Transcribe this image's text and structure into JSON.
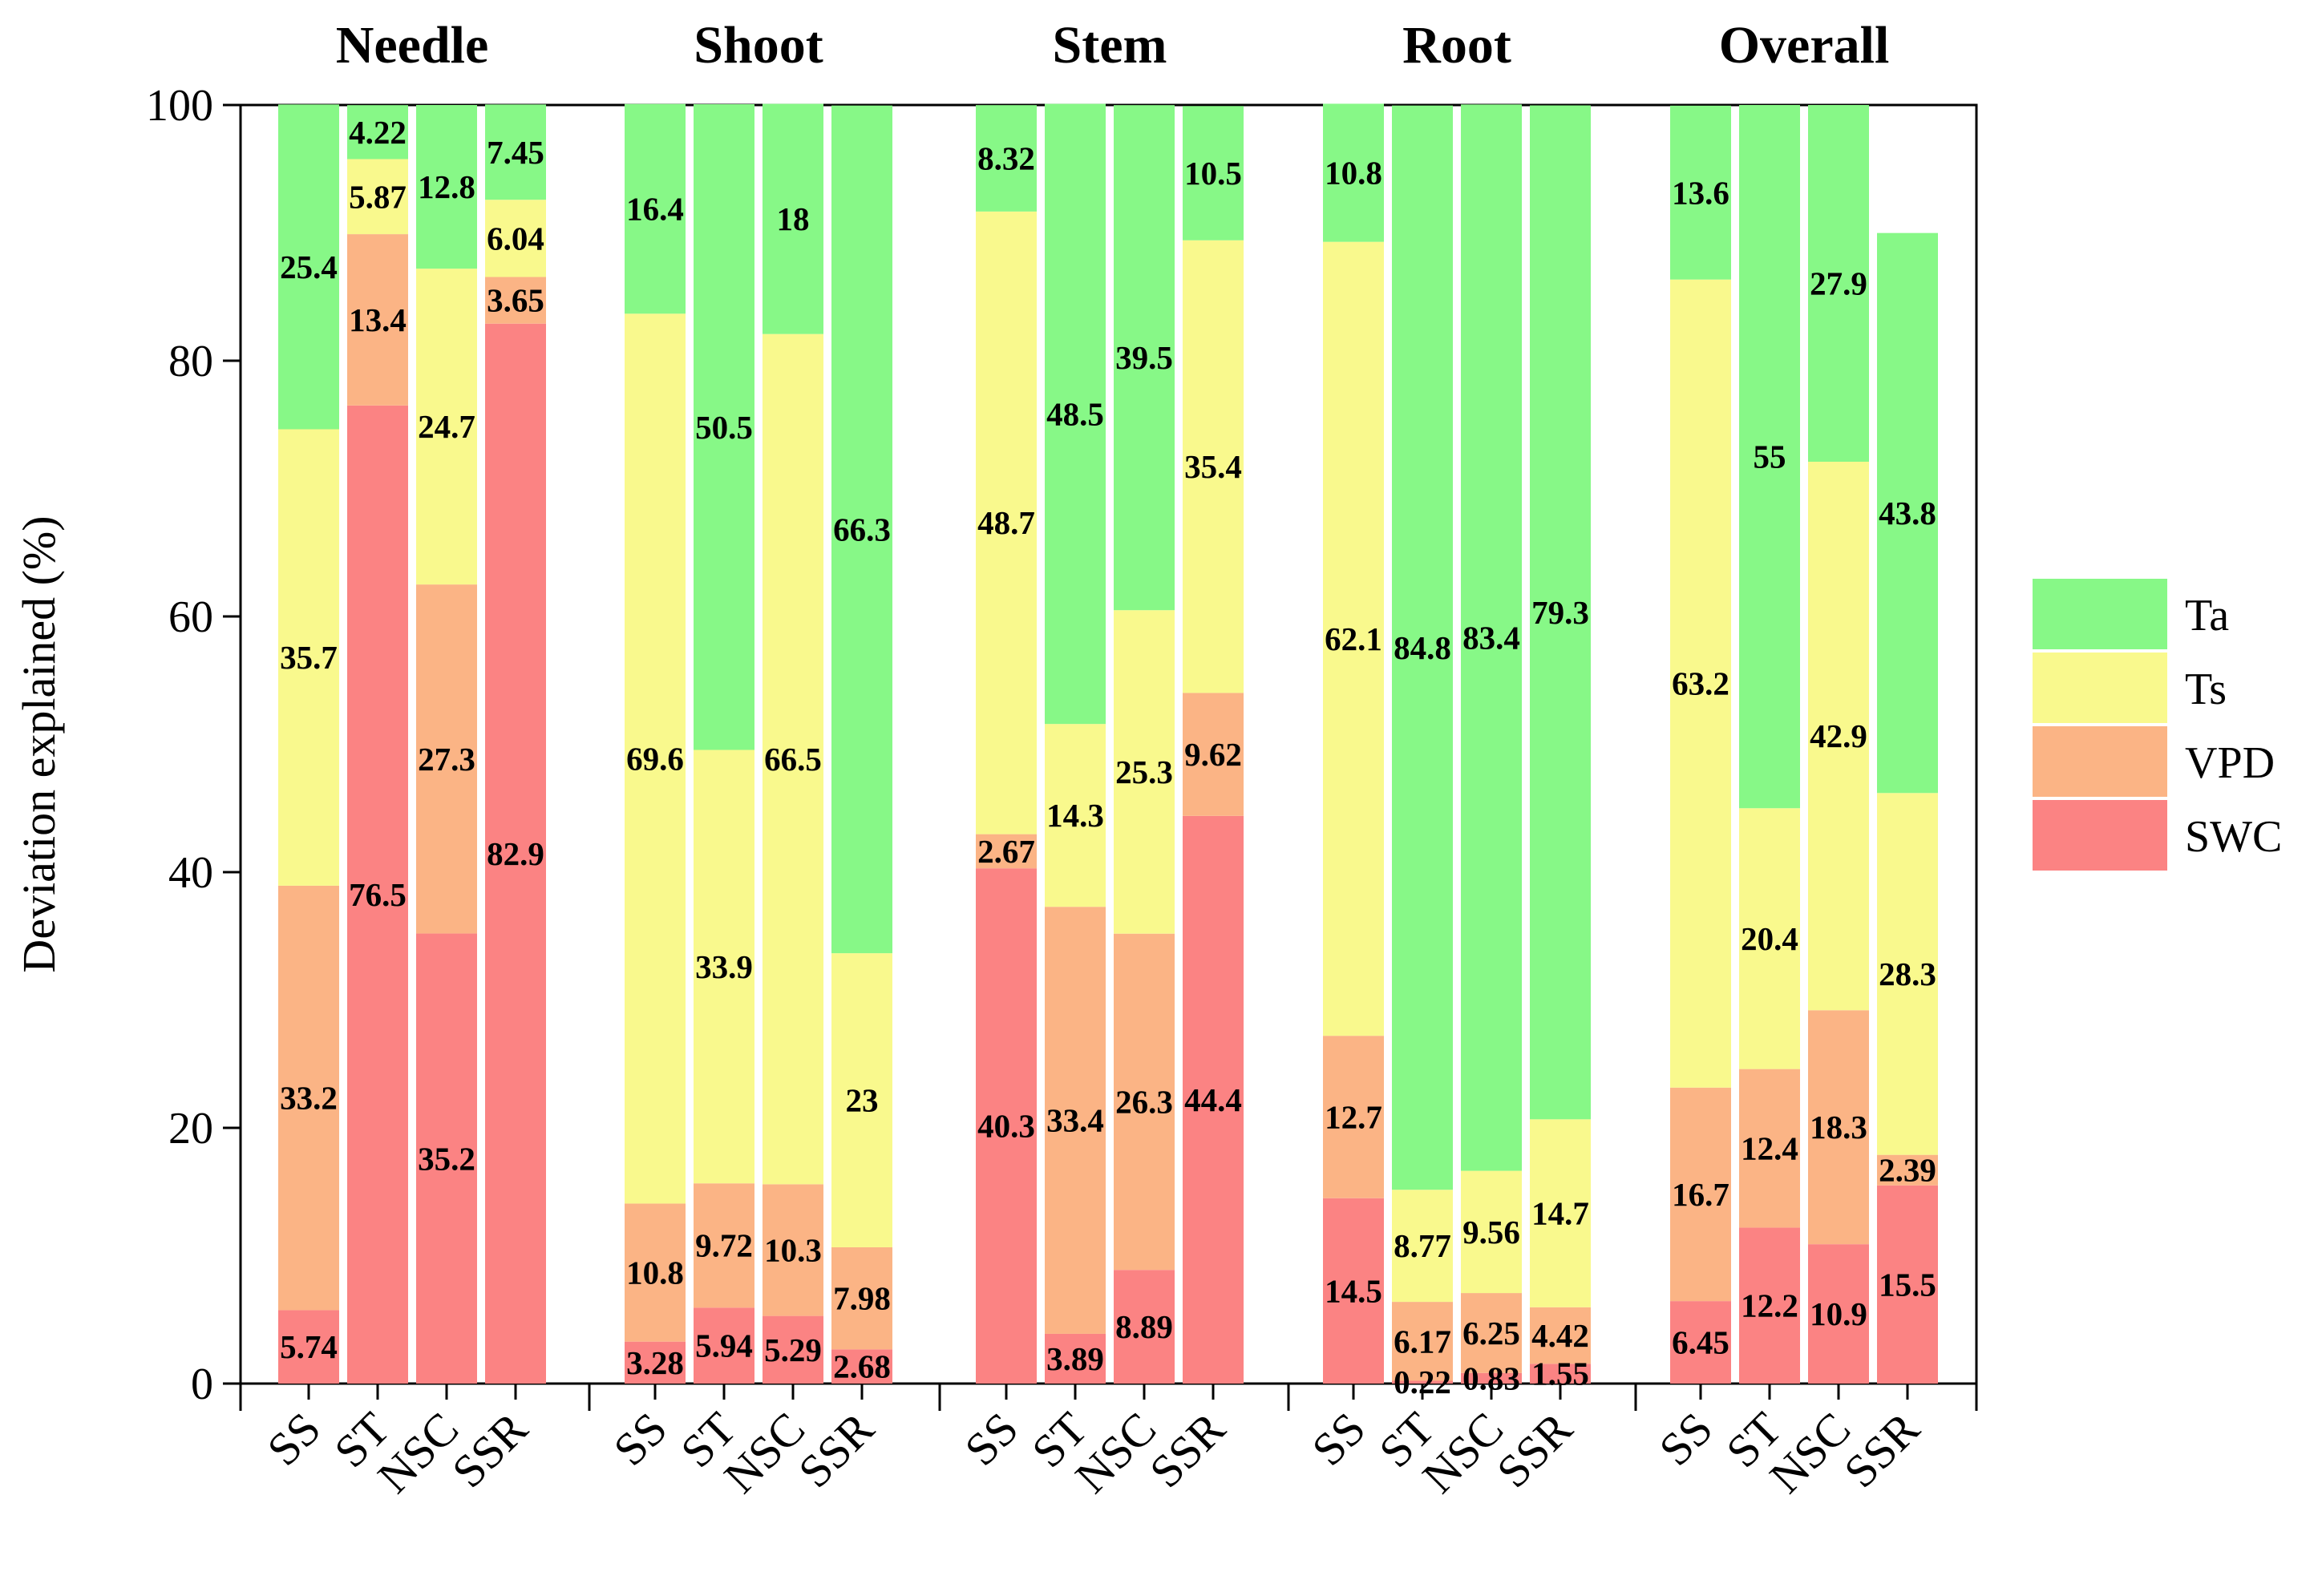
{
  "chart_data": {
    "type": "bar",
    "stacked": true,
    "ylabel": "Deviation explained (%)",
    "ylim": [
      0,
      100
    ],
    "yticks": [
      0,
      20,
      40,
      60,
      80,
      100
    ],
    "legend_position": "right",
    "legend": [
      {
        "name": "Ta",
        "color": "#87f887"
      },
      {
        "name": "Ts",
        "color": "#f9f98d"
      },
      {
        "name": "VPD",
        "color": "#fbb485"
      },
      {
        "name": "SWC",
        "color": "#fb8383"
      }
    ],
    "stack_order": [
      "SWC",
      "VPD",
      "Ts",
      "Ta"
    ],
    "colors": {
      "Ta": "#87f887",
      "Ts": "#f9f98d",
      "VPD": "#fbb485",
      "SWC": "#fb8383"
    },
    "groups": [
      {
        "title": "Needle",
        "bars": [
          {
            "category": "SS",
            "SWC": {
              "value": 5.74,
              "label": "5.74"
            },
            "VPD": {
              "value": 33.2,
              "label": "33.2"
            },
            "Ts": {
              "value": 35.7,
              "label": "35.7"
            },
            "Ta": {
              "value": 25.4,
              "label": "25.4"
            }
          },
          {
            "category": "ST",
            "SWC": {
              "value": 76.5,
              "label": "76.5"
            },
            "VPD": {
              "value": 13.4,
              "label": "13.4"
            },
            "Ts": {
              "value": 5.87,
              "label": "5.87"
            },
            "Ta": {
              "value": 4.22,
              "label": "4.22"
            }
          },
          {
            "category": "NSC",
            "SWC": {
              "value": 35.2,
              "label": "35.2"
            },
            "VPD": {
              "value": 27.3,
              "label": "27.3"
            },
            "Ts": {
              "value": 24.7,
              "label": "24.7"
            },
            "Ta": {
              "value": 12.8,
              "label": "12.8"
            }
          },
          {
            "category": "SSR",
            "SWC": {
              "value": 82.9,
              "label": "82.9"
            },
            "VPD": {
              "value": 3.65,
              "label": "3.65"
            },
            "Ts": {
              "value": 6.04,
              "label": "6.04"
            },
            "Ta": {
              "value": 7.45,
              "label": "7.45"
            }
          }
        ]
      },
      {
        "title": "Shoot",
        "bars": [
          {
            "category": "SS",
            "SWC": {
              "value": 3.28,
              "label": "3.28"
            },
            "VPD": {
              "value": 10.8,
              "label": "10.8"
            },
            "Ts": {
              "value": 69.6,
              "label": "69.6"
            },
            "Ta": {
              "value": 16.4,
              "label": "16.4"
            }
          },
          {
            "category": "ST",
            "SWC": {
              "value": 5.94,
              "label": "5.94"
            },
            "VPD": {
              "value": 9.72,
              "label": "9.72"
            },
            "Ts": {
              "value": 33.9,
              "label": "33.9"
            },
            "Ta": {
              "value": 50.5,
              "label": "50.5"
            }
          },
          {
            "category": "NSC",
            "SWC": {
              "value": 5.29,
              "label": "5.29"
            },
            "VPD": {
              "value": 10.3,
              "label": "10.3"
            },
            "Ts": {
              "value": 66.5,
              "label": "66.5"
            },
            "Ta": {
              "value": 18,
              "label": "18"
            }
          },
          {
            "category": "SSR",
            "SWC": {
              "value": 2.68,
              "label": "2.68"
            },
            "VPD": {
              "value": 7.98,
              "label": "7.98"
            },
            "Ts": {
              "value": 23,
              "label": "23"
            },
            "Ta": {
              "value": 66.3,
              "label": "66.3"
            }
          }
        ]
      },
      {
        "title": "Stem",
        "bars": [
          {
            "category": "SS",
            "SWC": {
              "value": 40.3,
              "label": "40.3"
            },
            "VPD": {
              "value": 2.67,
              "label": "2.67"
            },
            "Ts": {
              "value": 48.7,
              "label": "48.7"
            },
            "Ta": {
              "value": 8.32,
              "label": "8.32"
            }
          },
          {
            "category": "ST",
            "SWC": {
              "value": 3.89,
              "label": "3.89"
            },
            "VPD": {
              "value": 33.4,
              "label": "33.4"
            },
            "Ts": {
              "value": 14.3,
              "label": "14.3"
            },
            "Ta": {
              "value": 48.5,
              "label": "48.5"
            }
          },
          {
            "category": "NSC",
            "SWC": {
              "value": 8.89,
              "label": "8.89"
            },
            "VPD": {
              "value": 26.3,
              "label": "26.3"
            },
            "Ts": {
              "value": 25.3,
              "label": "25.3"
            },
            "Ta": {
              "value": 39.5,
              "label": "39.5"
            }
          },
          {
            "category": "SSR",
            "SWC": {
              "value": 44.4,
              "label": "44.4"
            },
            "VPD": {
              "value": 9.62,
              "label": "9.62"
            },
            "Ts": {
              "value": 35.4,
              "label": "35.4"
            },
            "Ta": {
              "value": 10.5,
              "label": "10.5"
            }
          }
        ]
      },
      {
        "title": "Root",
        "bars": [
          {
            "category": "SS",
            "SWC": {
              "value": 14.5,
              "label": "14.5"
            },
            "VPD": {
              "value": 12.7,
              "label": "12.7"
            },
            "Ts": {
              "value": 62.1,
              "label": "62.1"
            },
            "Ta": {
              "value": 10.8,
              "label": "10.8"
            }
          },
          {
            "category": "ST",
            "SWC": {
              "value": 0.22,
              "label": "0.22"
            },
            "VPD": {
              "value": 6.17,
              "label": "6.17"
            },
            "Ts": {
              "value": 8.77,
              "label": "8.77"
            },
            "Ta": {
              "value": 84.8,
              "label": "84.8"
            }
          },
          {
            "category": "NSC",
            "SWC": {
              "value": 0.83,
              "label": "0.83"
            },
            "VPD": {
              "value": 6.25,
              "label": "6.25"
            },
            "Ts": {
              "value": 9.56,
              "label": "9.56"
            },
            "Ta": {
              "value": 83.4,
              "label": "83.4"
            }
          },
          {
            "category": "SSR",
            "SWC": {
              "value": 1.55,
              "label": "1.55"
            },
            "VPD": {
              "value": 4.42,
              "label": "4.42"
            },
            "Ts": {
              "value": 14.7,
              "label": "14.7"
            },
            "Ta": {
              "value": 79.3,
              "label": "79.3"
            }
          }
        ]
      },
      {
        "title": "Overall",
        "bars": [
          {
            "category": "SS",
            "SWC": {
              "value": 6.45,
              "label": "6.45"
            },
            "VPD": {
              "value": 16.7,
              "label": "16.7"
            },
            "Ts": {
              "value": 63.2,
              "label": "63.2"
            },
            "Ta": {
              "value": 13.6,
              "label": "13.6"
            }
          },
          {
            "category": "ST",
            "SWC": {
              "value": 12.2,
              "label": "12.2"
            },
            "VPD": {
              "value": 12.4,
              "label": "12.4"
            },
            "Ts": {
              "value": 20.4,
              "label": "20.4"
            },
            "Ta": {
              "value": 55,
              "label": "55"
            }
          },
          {
            "category": "NSC",
            "SWC": {
              "value": 10.9,
              "label": "10.9"
            },
            "VPD": {
              "value": 18.3,
              "label": "18.3"
            },
            "Ts": {
              "value": 42.9,
              "label": "42.9"
            },
            "Ta": {
              "value": 27.9,
              "label": "27.9"
            }
          },
          {
            "category": "SSR",
            "SWC": {
              "value": 15.5,
              "label": "15.5"
            },
            "VPD": {
              "value": 2.39,
              "label": "2.39"
            },
            "Ts": {
              "value": 28.3,
              "label": "28.3"
            },
            "Ta": {
              "value": 43.8,
              "label": "43.8"
            }
          }
        ]
      }
    ]
  }
}
